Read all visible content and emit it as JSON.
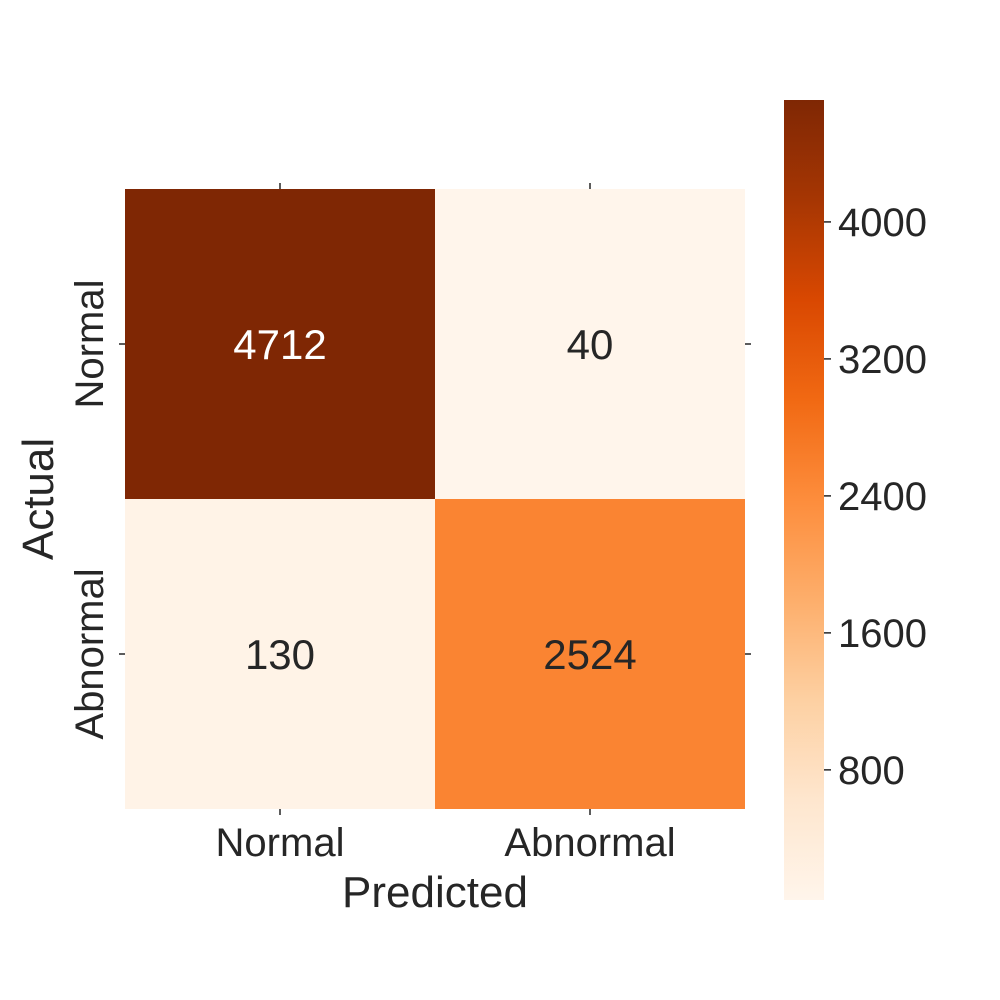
{
  "chart_data": {
    "type": "heatmap",
    "title": "",
    "xlabel": "Predicted",
    "ylabel": "Actual",
    "x_categories": [
      "Normal",
      "Abnormal"
    ],
    "y_categories": [
      "Normal",
      "Abnormal"
    ],
    "values": [
      [
        4712,
        40
      ],
      [
        130,
        2524
      ]
    ],
    "value_labels": [
      [
        "4712",
        "40"
      ],
      [
        "130",
        "2524"
      ]
    ],
    "colorbar": {
      "min": 40,
      "max": 4712,
      "ticks": [
        800,
        1600,
        2400,
        3200,
        4000
      ],
      "tick_labels": [
        "800",
        "1600",
        "2400",
        "3200",
        "4000"
      ],
      "colormap": "Oranges",
      "color_stops": [
        "#fff5eb",
        "#fee6ce",
        "#fdd0a2",
        "#fdae6b",
        "#fd8d3c",
        "#f16913",
        "#d94801",
        "#a63603",
        "#7f2704"
      ]
    },
    "grid": false,
    "legend": "colorbar-right"
  }
}
